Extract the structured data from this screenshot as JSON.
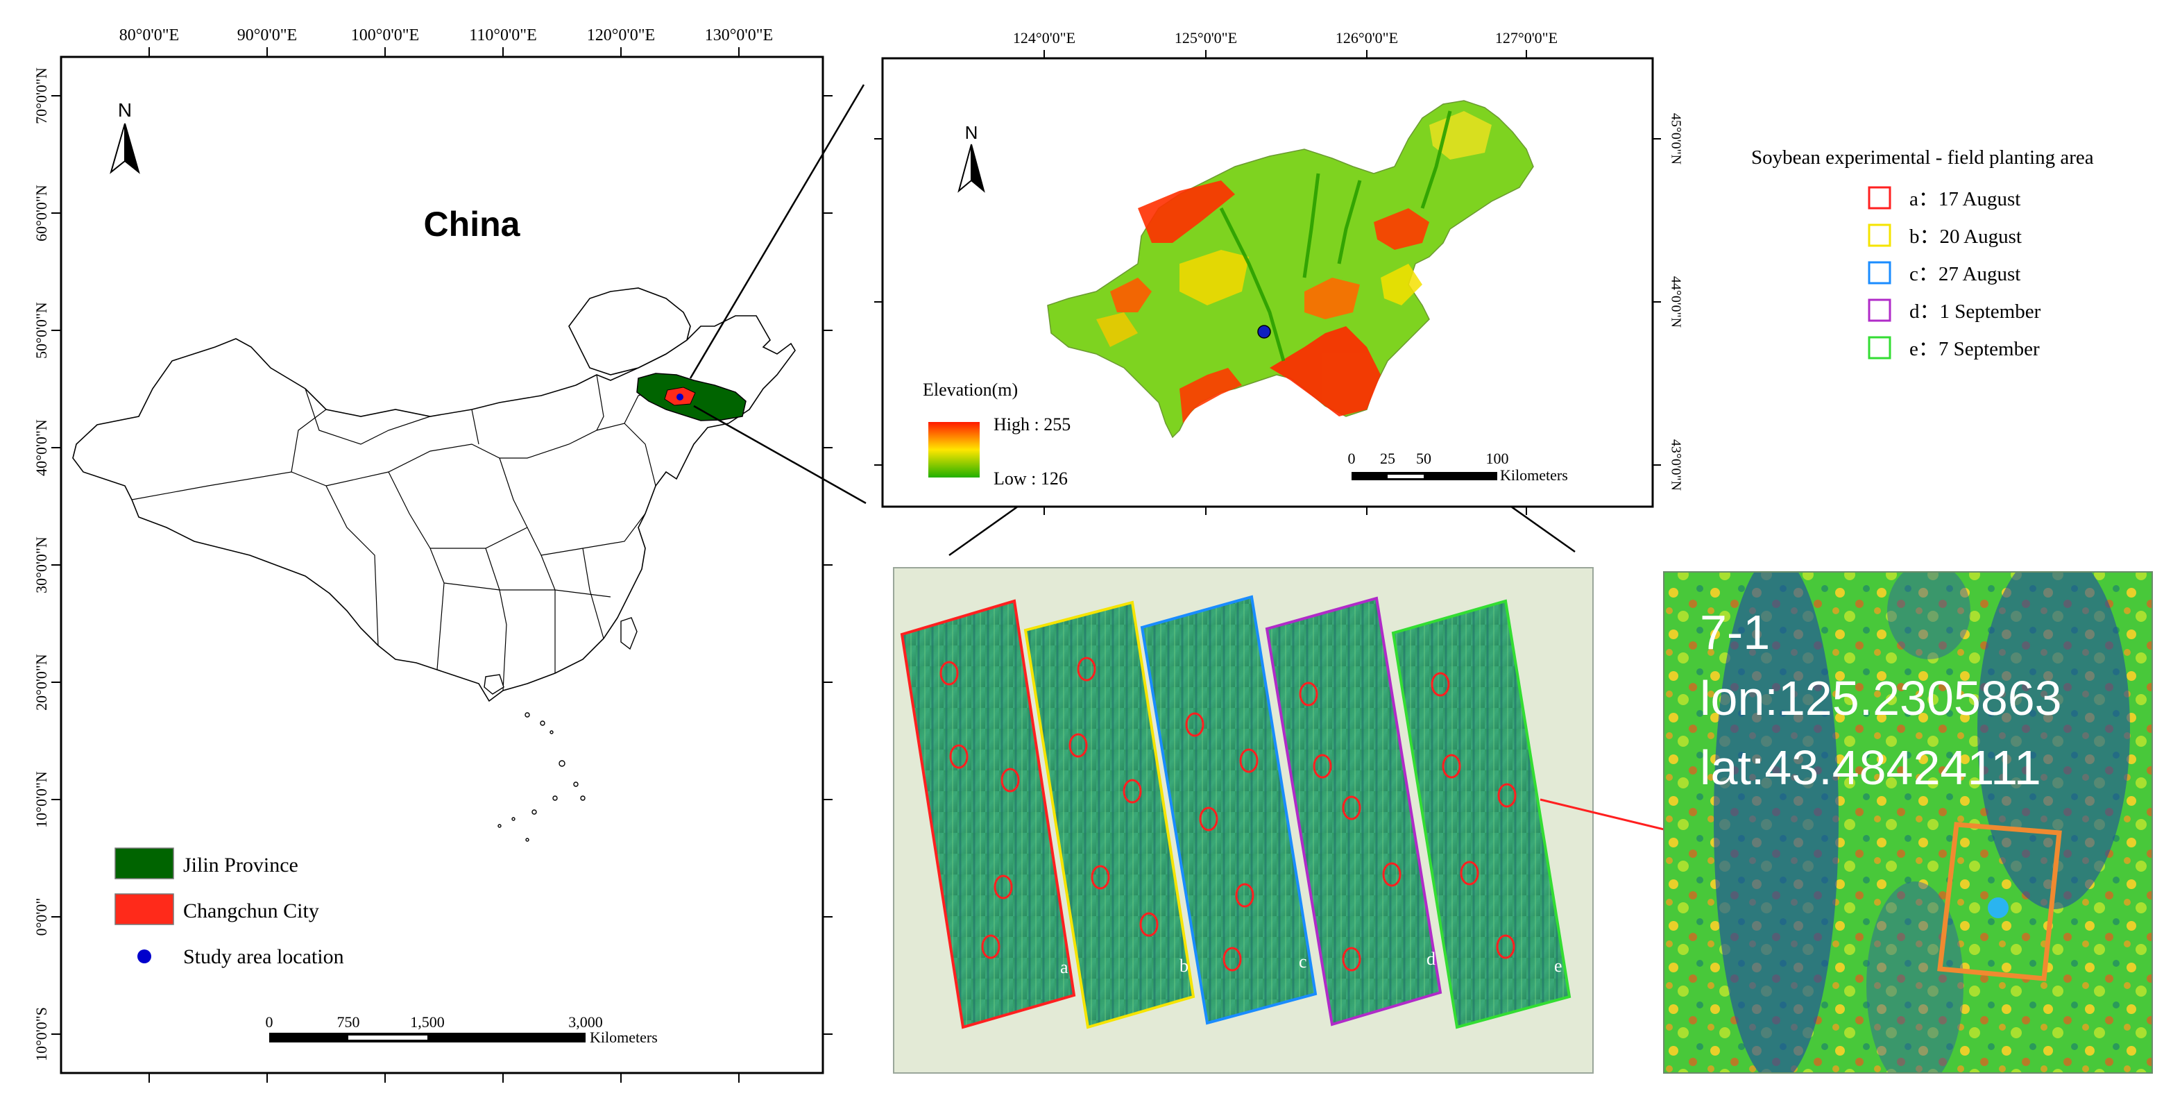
{
  "china_map": {
    "title": "China",
    "north": "N",
    "lon_ticks": [
      "80°0'0\"E",
      "90°0'0\"E",
      "100°0'0\"E",
      "110°0'0\"E",
      "120°0'0\"E",
      "130°0'0\"E"
    ],
    "lat_ticks": [
      "70°0'0\"N",
      "60°0'0\"N",
      "50°0'0\"N",
      "40°0'0\"N",
      "30°0'0\"N",
      "20°0'0\"N",
      "10°0'0\"N",
      "0°0'0\"",
      "10°0'0\"S"
    ],
    "legend": [
      {
        "label": "Jilin Province",
        "color": "#006400",
        "kind": "box"
      },
      {
        "label": "Changchun City",
        "color": "#ff2a1a",
        "kind": "box"
      },
      {
        "label": "Study area location",
        "color": "#0000cc",
        "kind": "dot"
      }
    ],
    "scale": {
      "ticks": [
        "0",
        "750",
        "1,500",
        "3,000"
      ],
      "unit": "Kilometers"
    }
  },
  "elevation_map": {
    "north": "N",
    "lon_ticks": [
      "124°0'0\"E",
      "125°0'0\"E",
      "126°0'0\"E",
      "127°0'0\"E"
    ],
    "lat_ticks": [
      "45°0'0\"N",
      "44°0'0\"N",
      "43°0'0\"N"
    ],
    "legend_title": "Elevation(m)",
    "high_label": "High : 255",
    "low_label": "Low : 126",
    "scale": {
      "ticks": [
        "0",
        "25",
        "50",
        "100"
      ],
      "unit": "Kilometers"
    }
  },
  "field_legend": {
    "title": "Soybean experimental - field planting area",
    "items": [
      {
        "label": "a：17 August",
        "color": "#ff2020"
      },
      {
        "label": "b：20 August",
        "color": "#f5e400"
      },
      {
        "label": "c：27 August",
        "color": "#1a8cff"
      },
      {
        "label": "d：1 September",
        "color": "#b02bc8"
      },
      {
        "label": "e：7 September",
        "color": "#33dd33"
      }
    ]
  },
  "uav_strips": [
    {
      "letter": "a",
      "color": "#ff2020"
    },
    {
      "letter": "b",
      "color": "#f5e400"
    },
    {
      "letter": "c",
      "color": "#1a8cff"
    },
    {
      "letter": "d",
      "color": "#b02bc8"
    },
    {
      "letter": "e",
      "color": "#33dd33"
    }
  ],
  "zoom": {
    "id": "7-1",
    "lon": "lon:125.2305863",
    "lat": "lat:43.48424111",
    "box_color": "#f08a30",
    "point_color": "#2ab4f0"
  }
}
